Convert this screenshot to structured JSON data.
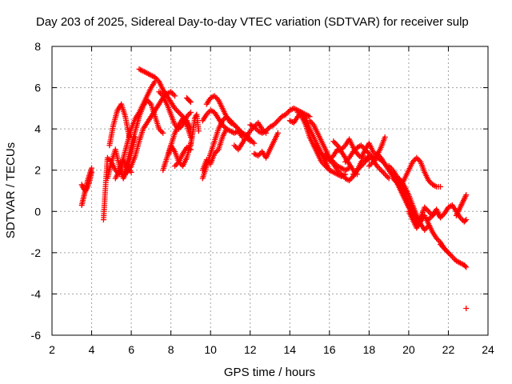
{
  "chart_data": {
    "type": "scatter",
    "title": "Day 203 of 2025, Sidereal Day-to-day VTEC variation (SDTVAR) for receiver sulp",
    "xlabel": "GPS time / hours",
    "ylabel": "SDTVAR / TECUs",
    "xlim": [
      2,
      24
    ],
    "ylim": [
      -6,
      8
    ],
    "x_ticks": [
      "2",
      "4",
      "6",
      "8",
      "10",
      "12",
      "14",
      "16",
      "18",
      "20",
      "22",
      "24"
    ],
    "y_ticks": [
      "8",
      "6",
      "4",
      "2",
      "0",
      "-2",
      "-4",
      "-6"
    ],
    "grid": true,
    "marker": "+",
    "color": "#ff0000",
    "series": [
      {
        "name": "track-1",
        "x": [
          3.5,
          3.6,
          3.7,
          3.8,
          3.9,
          4.0
        ],
        "y": [
          0.3,
          0.7,
          1.1,
          1.5,
          1.8,
          2.1
        ]
      },
      {
        "name": "track-2",
        "x": [
          3.5,
          3.6,
          3.7,
          3.8,
          3.9,
          4.0
        ],
        "y": [
          1.3,
          1.1,
          1.0,
          1.2,
          1.5,
          1.9
        ]
      },
      {
        "name": "track-3",
        "x": [
          4.6,
          4.7,
          4.8,
          5.0,
          5.2,
          5.4,
          5.6,
          5.8,
          6.0
        ],
        "y": [
          -0.4,
          1.2,
          2.6,
          2.4,
          2.0,
          1.8,
          2.5,
          2.1,
          1.9
        ]
      },
      {
        "name": "track-4",
        "x": [
          4.8,
          5.0,
          5.2,
          5.4,
          5.6,
          5.8,
          6.0,
          6.2
        ],
        "y": [
          1.6,
          2.4,
          3.0,
          2.2,
          1.6,
          2.0,
          2.8,
          3.6
        ]
      },
      {
        "name": "track-5",
        "x": [
          4.9,
          5.1,
          5.3,
          5.5,
          5.7,
          5.9
        ],
        "y": [
          3.2,
          4.2,
          4.9,
          5.2,
          4.6,
          3.6
        ]
      },
      {
        "name": "track-6",
        "x": [
          5.2,
          5.4,
          5.6,
          5.8,
          6.0,
          6.2,
          6.4,
          6.6,
          6.8,
          7.0,
          7.2
        ],
        "y": [
          1.6,
          2.0,
          2.6,
          3.3,
          4.0,
          4.5,
          4.8,
          5.2,
          5.6,
          6.0,
          6.3
        ]
      },
      {
        "name": "track-7",
        "x": [
          5.6,
          5.8,
          6.0,
          6.2,
          6.4,
          6.6,
          6.8,
          7.0,
          7.2,
          7.4,
          7.6
        ],
        "y": [
          1.7,
          2.4,
          3.2,
          3.9,
          4.6,
          5.1,
          5.4,
          5.2,
          4.6,
          4.0,
          3.8
        ]
      },
      {
        "name": "track-8",
        "x": [
          5.8,
          6.0,
          6.2,
          6.4,
          6.6,
          6.8,
          7.0,
          7.2,
          7.4,
          7.6,
          7.8,
          8.0,
          8.2
        ],
        "y": [
          1.9,
          2.2,
          2.7,
          3.4,
          4.0,
          4.3,
          4.6,
          4.9,
          5.2,
          5.5,
          5.7,
          5.8,
          5.6
        ]
      },
      {
        "name": "track-9",
        "x": [
          6.4,
          6.6,
          6.8,
          7.0,
          7.2,
          7.4,
          7.6,
          7.8,
          8.0,
          8.2,
          8.4,
          8.6,
          8.8,
          9.0
        ],
        "y": [
          6.9,
          6.8,
          6.7,
          6.6,
          6.5,
          6.3,
          5.9,
          5.6,
          5.3,
          5.0,
          4.8,
          4.6,
          4.4,
          4.0
        ]
      },
      {
        "name": "track-10",
        "x": [
          7.4,
          7.6,
          7.8,
          8.0,
          8.2,
          8.4,
          8.6,
          8.8,
          9.0
        ],
        "y": [
          5.8,
          5.6,
          5.2,
          4.7,
          4.2,
          4.0,
          4.2,
          4.6,
          4.8
        ]
      },
      {
        "name": "track-11",
        "x": [
          7.6,
          7.8,
          8.0,
          8.2,
          8.4,
          8.6,
          8.8,
          9.0
        ],
        "y": [
          2.0,
          2.6,
          3.2,
          3.8,
          4.2,
          4.5,
          4.2,
          3.6
        ]
      },
      {
        "name": "track-12",
        "x": [
          7.9,
          8.0,
          8.2,
          8.4,
          8.6,
          8.8,
          9.0
        ],
        "y": [
          2.8,
          3.2,
          2.9,
          2.4,
          2.2,
          2.6,
          3.3
        ]
      },
      {
        "name": "track-13",
        "x": [
          8.2,
          8.4,
          8.6,
          8.8,
          9.0
        ],
        "y": [
          2.2,
          2.4,
          2.8,
          3.1,
          3.0
        ]
      },
      {
        "name": "track-14",
        "x": [
          8.8,
          8.9,
          9.0
        ],
        "y": [
          5.5,
          5.4,
          5.3
        ]
      },
      {
        "name": "track-15",
        "x": [
          9.0,
          9.1,
          9.2,
          9.3,
          9.4
        ],
        "y": [
          3.2,
          3.8,
          4.5,
          4.7,
          3.9
        ]
      },
      {
        "name": "track-16",
        "x": [
          9.6,
          9.8,
          10.0,
          10.2,
          10.4,
          10.6,
          10.8,
          11.0,
          11.2,
          11.4,
          11.6,
          11.8,
          12.0
        ],
        "y": [
          1.6,
          2.2,
          2.8,
          3.4,
          4.0,
          4.4,
          4.6,
          4.4,
          4.2,
          4.0,
          3.8,
          3.6,
          3.4
        ]
      },
      {
        "name": "track-17",
        "x": [
          9.8,
          10.0,
          10.2,
          10.4,
          10.6,
          10.8,
          11.0,
          11.2,
          11.4,
          11.6,
          11.8,
          12.0,
          12.2
        ],
        "y": [
          5.2,
          5.5,
          5.6,
          5.4,
          5.0,
          4.6,
          4.3,
          4.2,
          4.0,
          3.8,
          3.7,
          3.5,
          3.3
        ]
      },
      {
        "name": "track-18",
        "x": [
          9.6,
          9.8,
          10.0,
          10.2,
          10.4,
          10.6,
          10.8,
          11.0,
          11.2,
          11.4,
          11.6
        ],
        "y": [
          4.4,
          4.7,
          4.9,
          4.8,
          4.5,
          4.2,
          4.0,
          3.9,
          3.8,
          3.9,
          3.6
        ]
      },
      {
        "name": "track-19",
        "x": [
          9.6,
          9.8,
          10.0,
          10.2,
          10.4,
          10.6,
          10.8
        ],
        "y": [
          2.0,
          2.5,
          2.3,
          2.8,
          3.0,
          3.6,
          4.0
        ]
      },
      {
        "name": "track-20",
        "x": [
          11.2,
          11.4,
          11.6,
          11.8,
          12.0,
          12.2,
          12.4,
          12.6,
          12.8
        ],
        "y": [
          3.2,
          3.0,
          3.3,
          3.6,
          3.9,
          4.1,
          4.3,
          4.0,
          3.8
        ]
      },
      {
        "name": "track-21",
        "x": [
          12.0,
          12.2,
          12.4,
          12.6,
          12.8,
          13.0,
          13.2,
          13.4,
          13.6,
          13.8,
          14.0,
          14.2,
          14.4,
          14.6,
          14.8,
          15.0
        ],
        "y": [
          4.2,
          4.1,
          3.9,
          3.8,
          3.9,
          4.1,
          4.2,
          4.4,
          4.6,
          4.7,
          4.9,
          5.0,
          4.9,
          4.8,
          4.7,
          4.6
        ]
      },
      {
        "name": "track-22",
        "x": [
          12.2,
          12.4,
          12.6,
          12.8,
          13.0,
          13.2,
          13.4
        ],
        "y": [
          2.8,
          2.7,
          2.9,
          2.6,
          3.0,
          3.4,
          3.8
        ]
      },
      {
        "name": "track-23",
        "x": [
          14.0,
          14.2,
          14.4,
          14.6,
          14.8,
          15.0,
          15.2,
          15.4,
          15.6,
          15.8,
          16.0
        ],
        "y": [
          4.4,
          4.3,
          4.6,
          4.8,
          4.5,
          4.0,
          3.6,
          3.2,
          2.8,
          2.4,
          2.0
        ]
      },
      {
        "name": "track-24",
        "x": [
          14.4,
          14.6,
          14.8,
          15.0,
          15.2,
          15.4,
          15.6,
          15.8,
          16.0,
          16.2,
          16.4,
          16.6,
          16.8
        ],
        "y": [
          4.8,
          4.6,
          4.2,
          3.6,
          3.2,
          2.8,
          2.4,
          2.2,
          2.0,
          1.9,
          1.8,
          1.7,
          1.8
        ]
      },
      {
        "name": "track-25",
        "x": [
          15.0,
          15.2,
          15.4,
          15.6,
          15.8,
          16.0,
          16.2,
          16.4,
          16.6,
          16.8,
          17.0
        ],
        "y": [
          4.4,
          4.2,
          3.8,
          3.4,
          3.0,
          2.6,
          2.4,
          2.2,
          2.1,
          2.0,
          2.1
        ]
      },
      {
        "name": "track-26",
        "x": [
          15.2,
          15.4,
          15.6,
          15.8,
          16.0,
          16.2,
          16.4,
          16.6,
          16.8,
          17.0,
          17.2,
          17.4
        ],
        "y": [
          3.2,
          3.0,
          2.8,
          2.6,
          2.5,
          2.7,
          3.0,
          2.9,
          2.6,
          2.3,
          2.0,
          1.8
        ]
      },
      {
        "name": "track-27",
        "x": [
          15.8,
          16.0,
          16.2,
          16.4,
          16.6,
          16.8,
          17.0,
          17.2,
          17.4,
          17.6,
          17.8,
          18.0
        ],
        "y": [
          2.8,
          2.5,
          2.3,
          2.0,
          1.8,
          1.6,
          1.5,
          1.7,
          2.0,
          2.4,
          2.6,
          2.5
        ]
      },
      {
        "name": "track-28",
        "x": [
          16.2,
          16.4,
          16.6,
          16.8,
          17.0,
          17.2,
          17.4,
          17.6,
          17.8,
          18.0,
          18.2,
          18.4
        ],
        "y": [
          3.4,
          3.2,
          3.0,
          3.2,
          3.5,
          3.1,
          2.8,
          2.6,
          3.0,
          3.3,
          2.9,
          2.7
        ]
      },
      {
        "name": "track-29",
        "x": [
          16.8,
          17.0,
          17.2,
          17.4,
          17.6,
          17.8,
          18.0,
          18.2,
          18.4,
          18.6,
          18.8
        ],
        "y": [
          2.4,
          2.6,
          2.9,
          3.1,
          3.2,
          3.0,
          2.8,
          2.6,
          2.7,
          3.1,
          3.6
        ]
      },
      {
        "name": "track-30",
        "x": [
          17.2,
          17.4,
          17.6,
          17.8,
          18.0,
          18.2,
          18.4,
          18.6,
          18.8,
          19.0
        ],
        "y": [
          1.8,
          2.0,
          2.2,
          2.4,
          2.7,
          2.5,
          2.2,
          2.0,
          1.8,
          1.6
        ]
      },
      {
        "name": "track-31",
        "x": [
          18.0,
          18.2,
          18.4,
          18.6,
          18.8,
          19.0,
          19.2,
          19.4,
          19.6,
          19.8,
          20.0
        ],
        "y": [
          2.2,
          2.4,
          2.6,
          2.5,
          2.3,
          2.0,
          1.7,
          1.4,
          1.0,
          0.6,
          0.2
        ]
      },
      {
        "name": "track-32",
        "x": [
          18.4,
          18.6,
          18.8,
          19.0,
          19.2,
          19.4,
          19.6,
          19.8,
          20.0,
          20.2,
          20.4
        ],
        "y": [
          2.8,
          2.6,
          2.3,
          2.0,
          1.8,
          1.6,
          1.3,
          0.9,
          0.4,
          0.0,
          -0.4
        ]
      },
      {
        "name": "track-33",
        "x": [
          19.0,
          19.2,
          19.4,
          19.6,
          19.8,
          20.0,
          20.2,
          20.4,
          20.6,
          20.8,
          21.0
        ],
        "y": [
          2.2,
          2.0,
          1.7,
          1.5,
          1.2,
          0.8,
          0.3,
          -0.2,
          -0.6,
          -0.9,
          -0.7
        ]
      },
      {
        "name": "track-34",
        "x": [
          19.2,
          19.4,
          19.6,
          19.8,
          20.0,
          20.2,
          20.4,
          20.6,
          20.8,
          21.0,
          21.2,
          21.4,
          21.6
        ],
        "y": [
          1.6,
          1.4,
          1.0,
          0.6,
          0.2,
          -0.2,
          -0.6,
          -0.3,
          0.2,
          0.0,
          -0.2,
          0.1,
          -0.3
        ]
      },
      {
        "name": "track-35",
        "x": [
          19.6,
          19.8,
          20.0,
          20.2,
          20.4,
          20.6,
          20.8,
          21.0,
          21.2,
          21.4,
          21.6
        ],
        "y": [
          1.2,
          1.6,
          2.0,
          2.4,
          2.6,
          2.4,
          1.9,
          1.5,
          1.3,
          1.2,
          1.2
        ]
      },
      {
        "name": "track-36",
        "x": [
          20.0,
          20.2,
          20.4,
          20.6,
          20.8,
          21.0,
          21.2,
          21.4,
          21.6,
          21.8,
          22.0
        ],
        "y": [
          0.0,
          -0.4,
          -0.8,
          -0.5,
          -0.2,
          -0.6,
          -1.0,
          -1.3,
          -1.5,
          -1.8,
          -2.0
        ]
      },
      {
        "name": "track-37",
        "x": [
          21.0,
          21.2,
          21.4,
          21.6,
          21.8,
          22.0,
          22.2,
          22.4,
          22.6,
          22.8,
          22.9
        ],
        "y": [
          -0.4,
          -0.2,
          0.0,
          -0.3,
          -0.1,
          0.2,
          0.3,
          0.0,
          -0.3,
          -0.5,
          -0.4
        ]
      },
      {
        "name": "track-38",
        "x": [
          21.6,
          21.8,
          22.0,
          22.2,
          22.4,
          22.6,
          22.8,
          22.9
        ],
        "y": [
          -1.6,
          -1.8,
          -2.0,
          -2.2,
          -2.4,
          -2.5,
          -2.6,
          -2.7
        ]
      },
      {
        "name": "track-39",
        "x": [
          22.4,
          22.5,
          22.6,
          22.7,
          22.8,
          22.9
        ],
        "y": [
          -0.2,
          0.0,
          0.2,
          0.4,
          0.6,
          0.8
        ]
      },
      {
        "name": "outlier",
        "x": [
          22.9
        ],
        "y": [
          -4.7
        ]
      }
    ]
  }
}
